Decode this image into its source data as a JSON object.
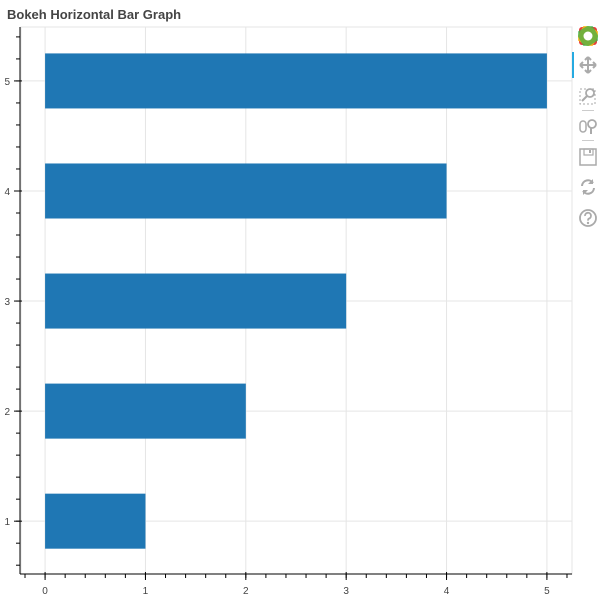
{
  "chart_data": {
    "type": "bar",
    "orientation": "horizontal",
    "title": "Bokeh Horizontal Bar Graph",
    "categories": [
      1,
      2,
      3,
      4,
      5
    ],
    "values": [
      1,
      2,
      3,
      4,
      5
    ],
    "bar_height": 0.5,
    "left": 0,
    "xlim": [
      -0.24,
      5.25
    ],
    "ylim": [
      0.52,
      5.49
    ],
    "xticks": [
      0,
      1,
      2,
      3,
      4,
      5
    ],
    "yticks": [
      1,
      2,
      3,
      4,
      5
    ],
    "minor_step": 0.2,
    "grid": true,
    "color": "#1f77b4"
  },
  "toolbar": [
    "bokeh-logo",
    "pan",
    "box-zoom",
    "wheel-zoom",
    "save",
    "reset",
    "help"
  ]
}
